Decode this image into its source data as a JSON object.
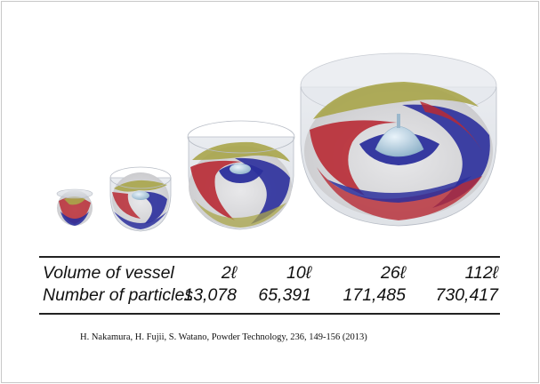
{
  "table": {
    "rows": [
      {
        "label": "Volume of vessel",
        "values": [
          "2ℓ",
          "10ℓ",
          "26ℓ",
          "112ℓ"
        ]
      },
      {
        "label": "Number of particles",
        "values": [
          "13,078",
          "65,391",
          "171,485",
          "730,417"
        ]
      }
    ]
  },
  "citation": "H. Nakamura, H. Fujii, S. Watano, Powder Technology, 236, 149-156 (2013)",
  "colors": {
    "particle_red": "#b82a34",
    "particle_blue": "#2b2f9c",
    "particle_olive": "#a9a54a",
    "particle_gray": "#d2d2d4",
    "vessel_glass": "#cfd4dc",
    "impeller": "#a9c6d8"
  }
}
